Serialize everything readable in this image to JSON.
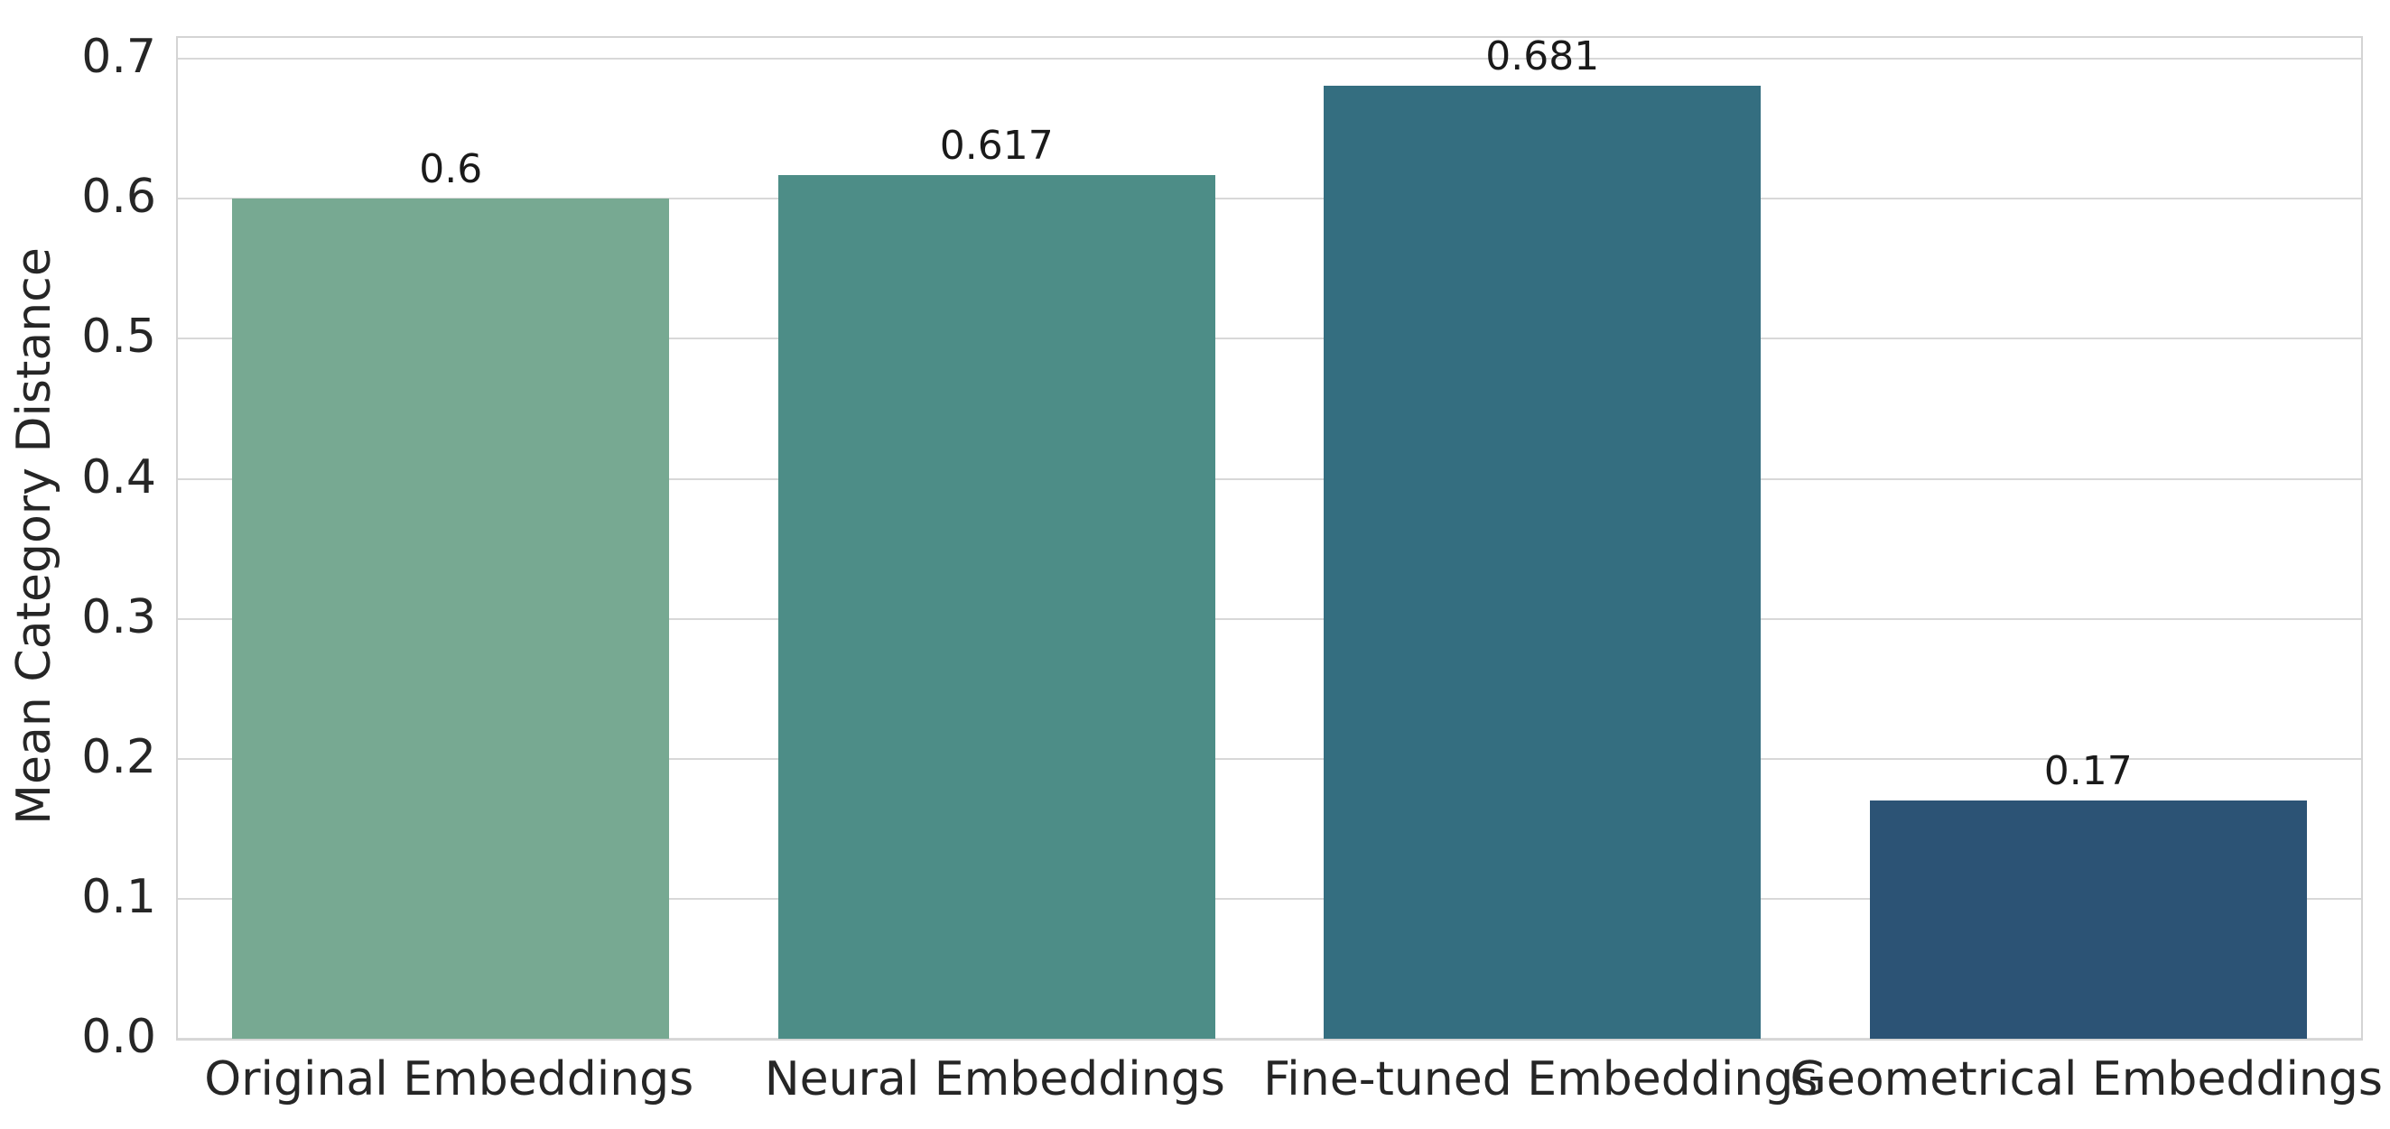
{
  "chart_data": {
    "type": "bar",
    "categories": [
      "Original Embeddings",
      "Neural Embeddings",
      "Fine-tuned Embeddings",
      "Geometrical Embeddings"
    ],
    "values": [
      0.6,
      0.617,
      0.681,
      0.17
    ],
    "value_labels": [
      "0.6",
      "0.617",
      "0.681",
      "0.17"
    ],
    "bar_colors": [
      "#77a992",
      "#4d8d87",
      "#346e80",
      "#2c5375"
    ],
    "title": "",
    "xlabel": "",
    "ylabel": "Mean Category Distance",
    "ylim": [
      0,
      0.715
    ],
    "yticks": [
      0.0,
      0.1,
      0.2,
      0.3,
      0.4,
      0.5,
      0.6,
      0.7
    ],
    "ytick_labels": [
      "0.0",
      "0.1",
      "0.2",
      "0.3",
      "0.4",
      "0.5",
      "0.6",
      "0.7"
    ],
    "grid": "horizontal",
    "grid_color": "#d8d8d8",
    "spine_color": "#d4d4d4",
    "legend": "none",
    "background_color": "#ffffff",
    "text_color": "#262626"
  }
}
